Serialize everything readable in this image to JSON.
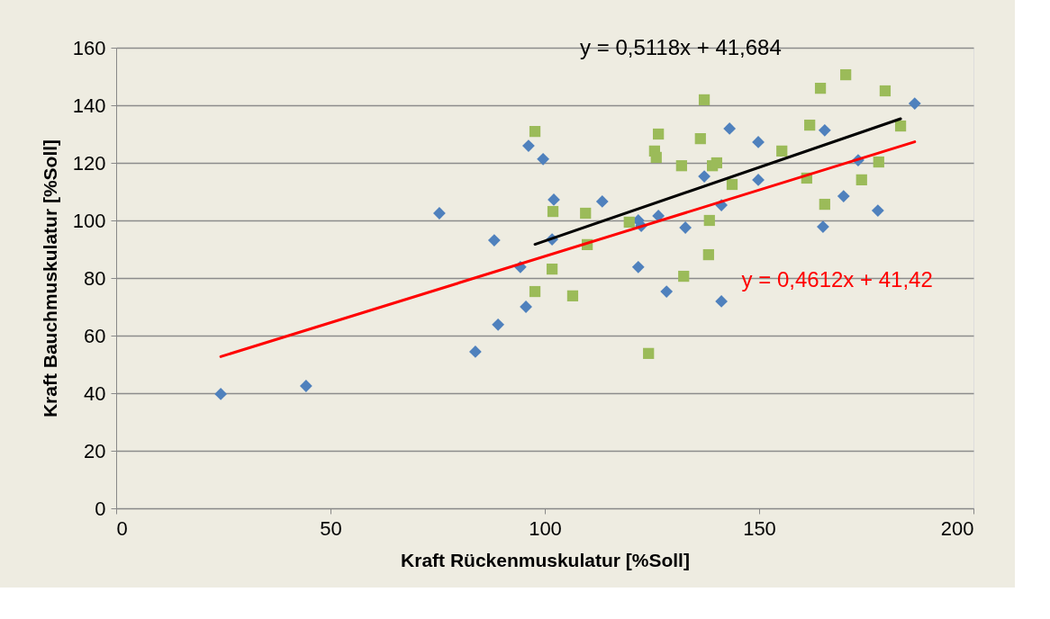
{
  "chart_data": {
    "type": "scatter",
    "xlabel": "Kraft Rückenmuskulatur [%Soll]",
    "ylabel": "Kraft Bauchmuskulatur [%Soll]",
    "xlim": [
      0,
      200
    ],
    "xticks": [
      0,
      50,
      100,
      150,
      200
    ],
    "ylim": [
      0,
      160
    ],
    "yticks": [
      0,
      20,
      40,
      60,
      80,
      100,
      120,
      140,
      160
    ],
    "grid": "y",
    "series": [
      {
        "marker": "diamond",
        "color": "#4f81bd",
        "x": [
          24.4,
          44.3,
          75.4,
          88.2,
          89.1,
          83.8,
          94.3,
          95.6,
          96.2,
          99.6,
          102.1,
          101.7,
          113.4,
          121.8,
          121.8,
          122.5,
          126.5,
          128.4,
          132.8,
          137.2,
          141.2,
          141.2,
          143.1,
          149.8,
          149.8,
          165.3,
          164.9,
          169.7,
          173.1,
          177.7,
          186.3
        ],
        "values": [
          39.7,
          42.5,
          102.5,
          93.1,
          63.8,
          54.4,
          83.8,
          70,
          125.9,
          121.3,
          107.2,
          93.4,
          106.6,
          100,
          83.8,
          98.1,
          101.6,
          75.3,
          97.5,
          115.3,
          71.9,
          105.3,
          131.9,
          127.2,
          114.1,
          131.3,
          97.8,
          108.4,
          120.9,
          103.4,
          140.6
        ]
      },
      {
        "marker": "square",
        "color": "#9bbb59",
        "x": [
          97.7,
          97.7,
          101.7,
          101.9,
          109.5,
          109.9,
          106.5,
          119.7,
          124.2,
          126.5,
          125.6,
          126,
          131.9,
          132.4,
          137.2,
          136.3,
          139.1,
          140.1,
          138.4,
          138.2,
          143.7,
          155.3,
          161.8,
          161.1,
          164.3,
          165.3,
          170.2,
          173.9,
          177.9,
          179.4,
          183
        ],
        "values": [
          130.9,
          75.3,
          83.1,
          103.1,
          102.5,
          91.6,
          73.8,
          99.4,
          53.8,
          130,
          124.1,
          121.9,
          119,
          80.6,
          141.9,
          128.4,
          119,
          120,
          100,
          88.1,
          112.5,
          124.1,
          133.1,
          114.7,
          145.9,
          105.6,
          150.6,
          114.1,
          120.3,
          145,
          132.8
        ]
      },
      {
        "type": "line",
        "marker": "none",
        "line_style": "solid",
        "color": "#000000",
        "x": [
          97.7,
          183
        ],
        "values": [
          91.7,
          135.3
        ]
      },
      {
        "type": "line",
        "marker": "none",
        "line_style": "solid",
        "color": "#ff0000",
        "x": [
          24.4,
          186.3
        ],
        "values": [
          52.7,
          127.3
        ]
      }
    ],
    "annotations": [
      "y = 0,5118x + 41,684",
      "y = 0,4612x + 41,42"
    ]
  }
}
